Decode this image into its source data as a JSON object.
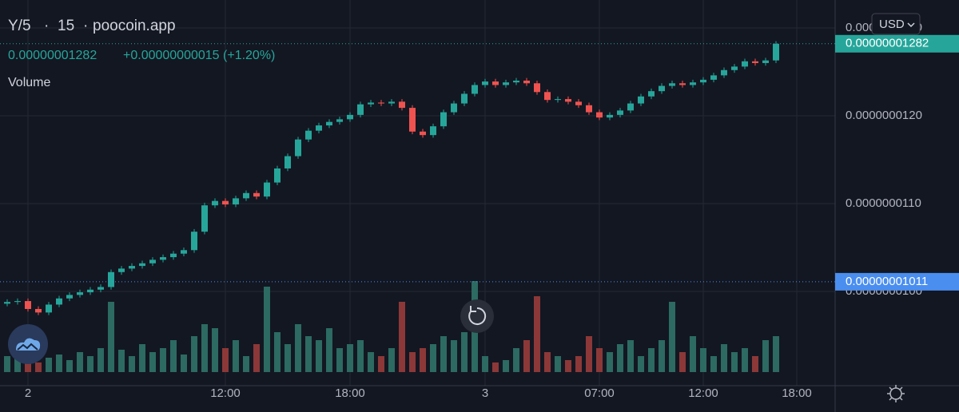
{
  "chart_data": {
    "type": "candlestick",
    "title": "Y/5",
    "interval": "15",
    "source": "poocoin.app",
    "last_price": {
      "value": 1.282e-08,
      "label": "0.00000001282"
    },
    "change": "+0.00000000015 (+1.20%)",
    "marker_price": {
      "value": 1.011e-08,
      "label": "0.00000001011"
    },
    "volume_label": "Volume",
    "currency": "USD",
    "categories": [
      null,
      null,
      "2",
      null,
      null,
      null,
      null,
      null,
      null,
      null,
      null,
      null,
      null,
      null,
      null,
      null,
      null,
      null,
      null,
      null,
      null,
      "12:00",
      null,
      null,
      null,
      null,
      null,
      null,
      null,
      null,
      null,
      null,
      null,
      "18:00",
      null,
      null,
      null,
      null,
      null,
      null,
      null,
      null,
      null,
      null,
      null,
      null,
      "3",
      null,
      null,
      null,
      null,
      null,
      null,
      null,
      null,
      null,
      null,
      "07:00",
      null,
      null,
      null,
      null,
      null,
      null,
      null,
      null,
      null,
      "12:00",
      null,
      null,
      null,
      null,
      null,
      null,
      null,
      null,
      "18:00"
    ],
    "open": [
      9.86e-09,
      9.88e-09,
      9.89e-09,
      9.8e-09,
      9.76e-09,
      9.85e-09,
      9.92e-09,
      9.96e-09,
      9.99e-09,
      1.002e-08,
      1.005e-08,
      1.022e-08,
      1.026e-08,
      1.029e-08,
      1.032e-08,
      1.036e-08,
      1.039e-08,
      1.043e-08,
      1.047e-08,
      1.068e-08,
      1.098e-08,
      1.103e-08,
      1.099e-08,
      1.106e-08,
      1.112e-08,
      1.108e-08,
      1.124e-08,
      1.14e-08,
      1.154e-08,
      1.173e-08,
      1.183e-08,
      1.189e-08,
      1.193e-08,
      1.196e-08,
      1.201e-08,
      1.213e-08,
      1.215e-08,
      1.214e-08,
      1.216e-08,
      1.209e-08,
      1.182e-08,
      1.178e-08,
      1.188e-08,
      1.204e-08,
      1.214e-08,
      1.225e-08,
      1.235e-08,
      1.239e-08,
      1.235e-08,
      1.238e-08,
      1.24e-08,
      1.237e-08,
      1.227e-08,
      1.218e-08,
      1.219e-08,
      1.216e-08,
      1.212e-08,
      1.204e-08,
      1.198e-08,
      1.201e-08,
      1.206e-08,
      1.214e-08,
      1.222e-08,
      1.228e-08,
      1.234e-08,
      1.237e-08,
      1.235e-08,
      1.238e-08,
      1.241e-08,
      1.246e-08,
      1.252e-08,
      1.256e-08,
      1.262e-08,
      1.26e-08,
      1.263e-08,
      null,
      null
    ],
    "high": [
      9.91e-09,
      9.92e-09,
      9.92e-09,
      9.83e-09,
      9.88e-09,
      9.95e-09,
      9.99e-09,
      1.002e-08,
      1.005e-08,
      1.008e-08,
      1.025e-08,
      1.029e-08,
      1.032e-08,
      1.035e-08,
      1.039e-08,
      1.042e-08,
      1.046e-08,
      1.05e-08,
      1.071e-08,
      1.101e-08,
      1.106e-08,
      1.106e-08,
      1.109e-08,
      1.115e-08,
      1.115e-08,
      1.127e-08,
      1.143e-08,
      1.157e-08,
      1.176e-08,
      1.186e-08,
      1.192e-08,
      1.196e-08,
      1.199e-08,
      1.204e-08,
      1.216e-08,
      1.218e-08,
      1.218e-08,
      1.219e-08,
      1.219e-08,
      1.212e-08,
      1.185e-08,
      1.191e-08,
      1.207e-08,
      1.217e-08,
      1.228e-08,
      1.238e-08,
      1.242e-08,
      1.242e-08,
      1.241e-08,
      1.243e-08,
      1.243e-08,
      1.24e-08,
      1.23e-08,
      1.222e-08,
      1.222e-08,
      1.219e-08,
      1.215e-08,
      1.207e-08,
      1.204e-08,
      1.209e-08,
      1.217e-08,
      1.225e-08,
      1.231e-08,
      1.237e-08,
      1.24e-08,
      1.24e-08,
      1.241e-08,
      1.244e-08,
      1.249e-08,
      1.255e-08,
      1.259e-08,
      1.265e-08,
      1.265e-08,
      1.266e-08,
      1.285e-08,
      null,
      null
    ],
    "low": [
      9.83e-09,
      9.85e-09,
      9.77e-09,
      9.73e-09,
      9.73e-09,
      9.82e-09,
      9.89e-09,
      9.93e-09,
      9.96e-09,
      9.99e-09,
      1.002e-08,
      1.019e-08,
      1.023e-08,
      1.026e-08,
      1.029e-08,
      1.033e-08,
      1.036e-08,
      1.04e-08,
      1.044e-08,
      1.065e-08,
      1.095e-08,
      1.096e-08,
      1.096e-08,
      1.103e-08,
      1.105e-08,
      1.105e-08,
      1.121e-08,
      1.137e-08,
      1.151e-08,
      1.17e-08,
      1.18e-08,
      1.186e-08,
      1.19e-08,
      1.193e-08,
      1.198e-08,
      1.21e-08,
      1.211e-08,
      1.211e-08,
      1.206e-08,
      1.179e-08,
      1.175e-08,
      1.175e-08,
      1.185e-08,
      1.201e-08,
      1.211e-08,
      1.222e-08,
      1.232e-08,
      1.232e-08,
      1.232e-08,
      1.235e-08,
      1.234e-08,
      1.224e-08,
      1.215e-08,
      1.215e-08,
      1.213e-08,
      1.209e-08,
      1.201e-08,
      1.195e-08,
      1.195e-08,
      1.198e-08,
      1.203e-08,
      1.211e-08,
      1.219e-08,
      1.225e-08,
      1.231e-08,
      1.232e-08,
      1.232e-08,
      1.235e-08,
      1.238e-08,
      1.243e-08,
      1.249e-08,
      1.253e-08,
      1.257e-08,
      1.257e-08,
      1.26e-08,
      null,
      null
    ],
    "close": [
      9.88e-09,
      9.89e-09,
      9.8e-09,
      9.76e-09,
      9.85e-09,
      9.92e-09,
      9.96e-09,
      9.99e-09,
      1.002e-08,
      1.005e-08,
      1.022e-08,
      1.026e-08,
      1.029e-08,
      1.032e-08,
      1.036e-08,
      1.039e-08,
      1.043e-08,
      1.047e-08,
      1.068e-08,
      1.098e-08,
      1.103e-08,
      1.099e-08,
      1.106e-08,
      1.112e-08,
      1.108e-08,
      1.124e-08,
      1.14e-08,
      1.154e-08,
      1.173e-08,
      1.183e-08,
      1.189e-08,
      1.193e-08,
      1.196e-08,
      1.201e-08,
      1.213e-08,
      1.215e-08,
      1.214e-08,
      1.216e-08,
      1.209e-08,
      1.182e-08,
      1.178e-08,
      1.188e-08,
      1.204e-08,
      1.214e-08,
      1.225e-08,
      1.235e-08,
      1.239e-08,
      1.235e-08,
      1.238e-08,
      1.24e-08,
      1.237e-08,
      1.227e-08,
      1.218e-08,
      1.219e-08,
      1.216e-08,
      1.212e-08,
      1.204e-08,
      1.198e-08,
      1.201e-08,
      1.206e-08,
      1.214e-08,
      1.222e-08,
      1.228e-08,
      1.234e-08,
      1.237e-08,
      1.235e-08,
      1.238e-08,
      1.241e-08,
      1.246e-08,
      1.252e-08,
      1.256e-08,
      1.262e-08,
      1.26e-08,
      1.263e-08,
      1.282e-08,
      null,
      null
    ],
    "volume": [
      20,
      25,
      30,
      12,
      18,
      22,
      15,
      25,
      20,
      30,
      88,
      28,
      20,
      35,
      25,
      30,
      40,
      22,
      45,
      60,
      55,
      30,
      40,
      20,
      35,
      107,
      50,
      35,
      60,
      45,
      40,
      55,
      30,
      35,
      40,
      25,
      20,
      30,
      88,
      25,
      30,
      35,
      45,
      40,
      50,
      114,
      20,
      12,
      15,
      30,
      40,
      95,
      25,
      20,
      15,
      20,
      45,
      30,
      25,
      35,
      40,
      20,
      30,
      40,
      88,
      25,
      45,
      30,
      20,
      35,
      25,
      30,
      20,
      40,
      45,
      null,
      null
    ],
    "ylim": [
      8.927e-09,
      1.3318e-08
    ],
    "yticks": [
      {
        "value": 1e-08,
        "label": "0.0000000100"
      },
      {
        "value": 1.1e-08,
        "label": "0.0000000110"
      },
      {
        "value": 1.2e-08,
        "label": "0.0000000120"
      },
      {
        "value": 1.3e-08,
        "label": "0.0000000130"
      }
    ],
    "volume_ylim": [
      0,
      466
    ],
    "grid": true,
    "up_color": "#26a69a",
    "down_color": "#ef5350",
    "volume_up_color": "#2c6a62",
    "volume_down_color": "#8c3838"
  }
}
